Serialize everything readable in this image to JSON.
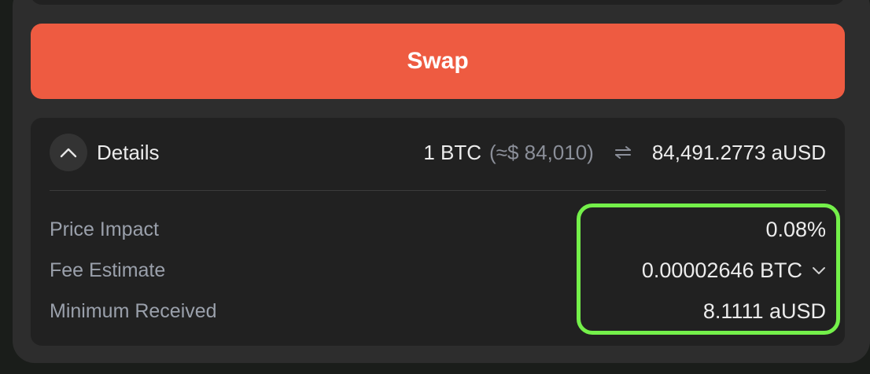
{
  "swap_button": {
    "label": "Swap"
  },
  "details": {
    "label": "Details",
    "toggle_icon": "chevron-up-icon",
    "rate": {
      "from_amount": "1 BTC",
      "from_usd": "(≈$ 84,010)",
      "exchange_icon": "swap-arrows-icon",
      "to_amount": "84,491.2773 aUSD"
    },
    "rows": [
      {
        "label": "Price Impact",
        "value": "0.08%"
      },
      {
        "label": "Fee Estimate",
        "value": "0.00002646 BTC",
        "icon": "chevron-down-icon"
      },
      {
        "label": "Minimum Received",
        "value": "8.1111 aUSD"
      }
    ]
  },
  "colors": {
    "accent": "#ee5b41",
    "highlight": "#74f04a",
    "panel": "#2d2d2d",
    "card": "#212121"
  }
}
